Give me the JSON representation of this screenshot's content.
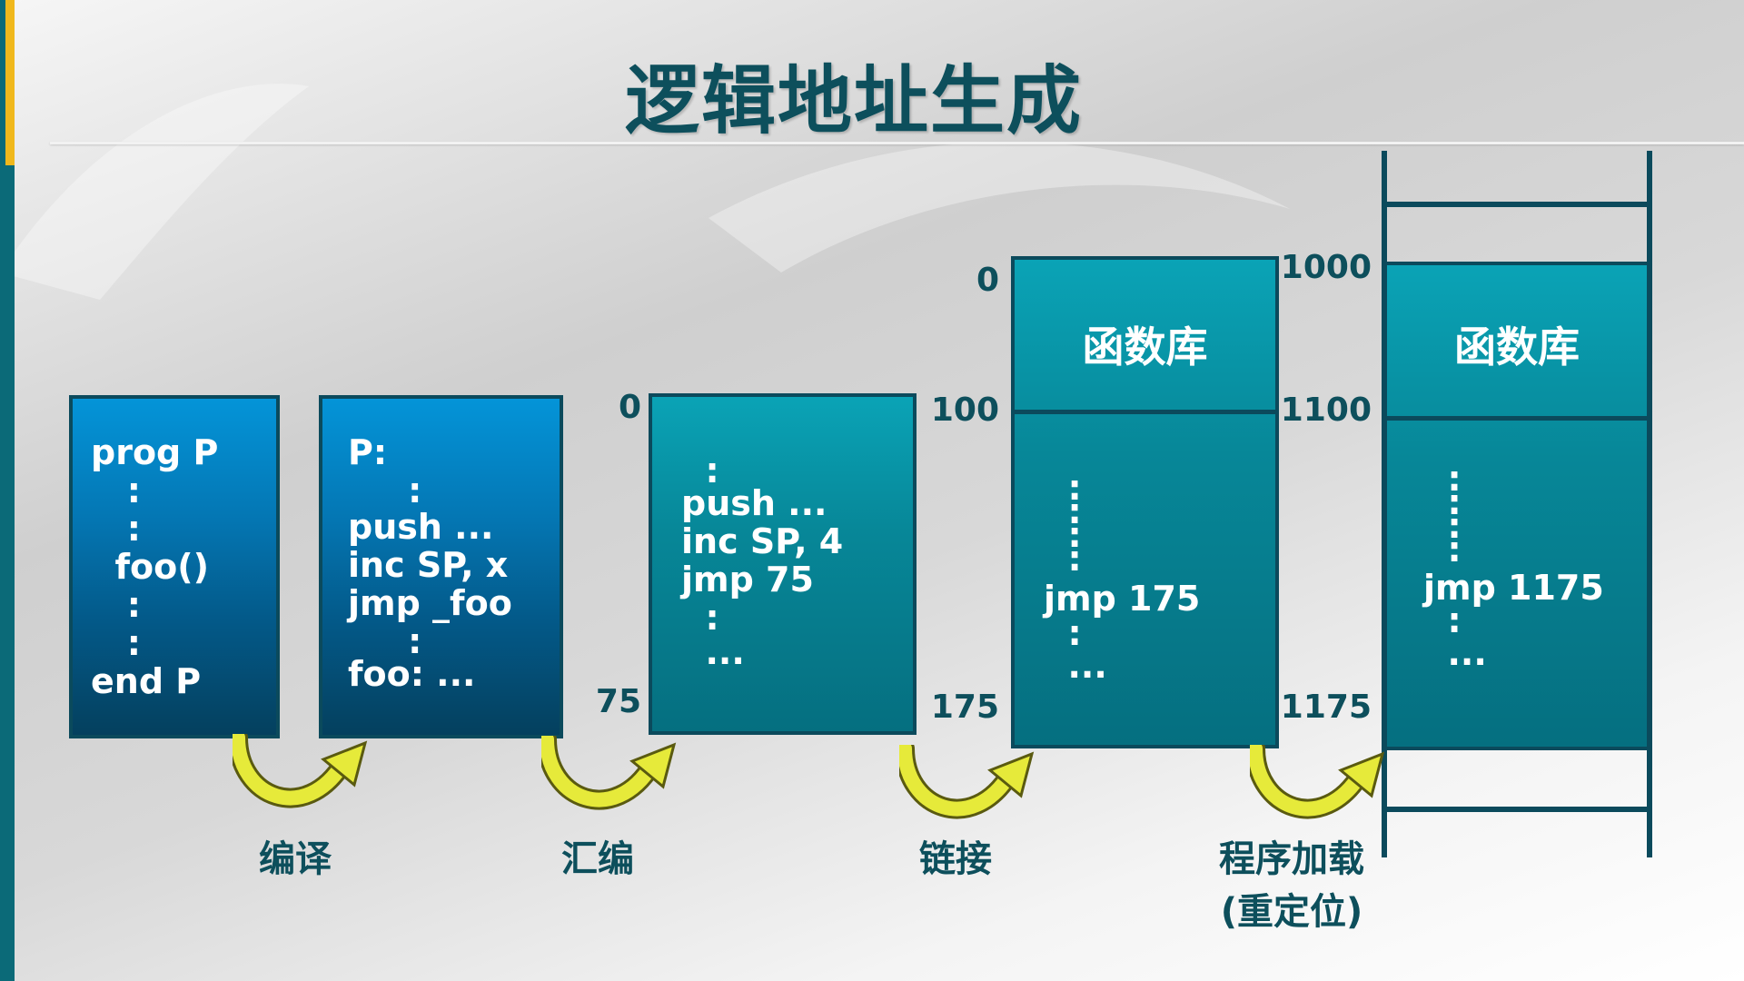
{
  "title": "逻辑地址生成",
  "source": {
    "lines": [
      "prog P",
      "   :",
      "   :",
      "  foo()",
      "   :",
      "   :",
      "end P"
    ]
  },
  "compiled": {
    "lines": [
      "P:",
      "     :",
      "push ...",
      "inc SP, x",
      "jmp _foo",
      "     :",
      "foo: ..."
    ]
  },
  "assembled": {
    "lines": [
      "  :",
      "push ...",
      "inc SP, 4",
      "jmp 75",
      "  :",
      "  ..."
    ],
    "addr_top": "0",
    "addr_bottom": "75"
  },
  "linked": {
    "lib_label": "函数库",
    "lines": [
      "  :",
      "  :",
      "  :",
      "  :",
      "jmp 175",
      "  :",
      "  ..."
    ],
    "addr_0": "0",
    "addr_100": "100",
    "addr_175": "175"
  },
  "loaded": {
    "lib_label": "函数库",
    "lines": [
      "  :",
      "  :",
      "  :",
      "  :",
      "jmp 1175",
      "  :",
      "  ..."
    ],
    "addr_1000": "1000",
    "addr_1100": "1100",
    "addr_1175": "1175"
  },
  "steps": {
    "compile": "编译",
    "assemble": "汇编",
    "link": "链接",
    "load_line1": "程序加载",
    "load_line2": "(重定位)"
  },
  "colors": {
    "dark_teal": "#0d4f5c",
    "arrow_yellow": "#e6ea3a",
    "accent": "#f0b81c"
  }
}
